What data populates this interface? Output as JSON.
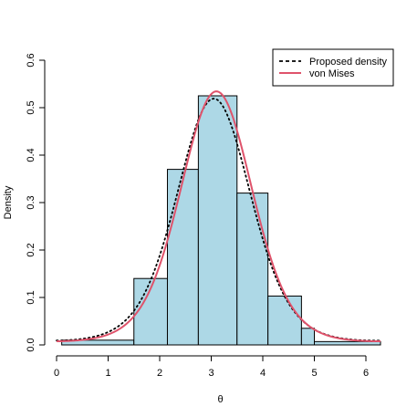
{
  "chart_data": {
    "type": "histogram",
    "title": "",
    "xlabel": "θ",
    "ylabel": "Density",
    "xlim": [
      0,
      6.283
    ],
    "ylim": [
      0,
      0.6
    ],
    "x_ticks": [
      "0",
      "1",
      "2",
      "3",
      "4",
      "5",
      "6"
    ],
    "y_ticks": [
      "0.0",
      "0.1",
      "0.2",
      "0.3",
      "0.4",
      "0.5",
      "0.6"
    ],
    "grid": false,
    "legend_position": "top-right",
    "bins": [
      {
        "x0": 0.1,
        "x1": 1.5,
        "density": 0.01
      },
      {
        "x0": 1.5,
        "x1": 2.15,
        "density": 0.14
      },
      {
        "x0": 2.15,
        "x1": 2.75,
        "density": 0.37
      },
      {
        "x0": 2.75,
        "x1": 3.5,
        "density": 0.525
      },
      {
        "x0": 3.5,
        "x1": 4.1,
        "density": 0.32
      },
      {
        "x0": 4.1,
        "x1": 4.75,
        "density": 0.103
      },
      {
        "x0": 4.75,
        "x1": 5.0,
        "density": 0.035
      },
      {
        "x0": 5.0,
        "x1": 6.283,
        "density": 0.007
      }
    ],
    "bar_fill": "#add8e6",
    "series": [
      {
        "name": "Proposed density",
        "style": "dotted",
        "color": "#000000",
        "mu": 3.05,
        "kappa": 2.02
      },
      {
        "name": "von Mises",
        "style": "solid",
        "color": "#df536b",
        "mu": 3.1,
        "kappa": 2.12
      }
    ]
  }
}
